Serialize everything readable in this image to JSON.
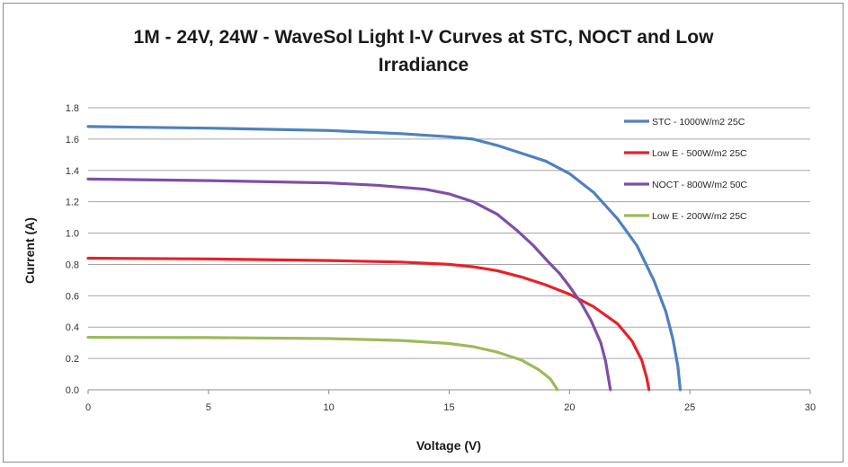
{
  "chart_data": {
    "type": "line",
    "title_lines": [
      "1M - 24V, 24W - WaveSol Light I-V Curves at STC, NOCT and Low",
      "Irradiance"
    ],
    "xlabel": "Voltage (V)",
    "ylabel": "Current (A)",
    "xlim": [
      0,
      30
    ],
    "ylim": [
      0,
      1.8
    ],
    "x_ticks": [
      0,
      5,
      10,
      15,
      20,
      25,
      30
    ],
    "y_ticks": [
      0,
      0.2,
      0.4,
      0.6,
      0.8,
      1.0,
      1.2,
      1.4,
      1.6,
      1.8
    ],
    "y_tick_labels": [
      "0.0",
      "0.2",
      "0.4",
      "0.6",
      "0.8",
      "1.0",
      "1.2",
      "1.4",
      "1.6",
      "1.8"
    ],
    "grid": "horizontal",
    "legend_position": "top-right",
    "series": [
      {
        "name": "STC - 1000W/m2  25C",
        "color": "#4f81bd",
        "points": [
          [
            0,
            1.68
          ],
          [
            5,
            1.67
          ],
          [
            10,
            1.655
          ],
          [
            13,
            1.635
          ],
          [
            15,
            1.615
          ],
          [
            16,
            1.6
          ],
          [
            17,
            1.56
          ],
          [
            18,
            1.51
          ],
          [
            19,
            1.46
          ],
          [
            20,
            1.38
          ],
          [
            21,
            1.26
          ],
          [
            22,
            1.09
          ],
          [
            22.8,
            0.92
          ],
          [
            23.5,
            0.7
          ],
          [
            24,
            0.5
          ],
          [
            24.3,
            0.32
          ],
          [
            24.5,
            0.15
          ],
          [
            24.6,
            0.0
          ]
        ]
      },
      {
        "name": "Low E - 500W/m2  25C",
        "color": "#e8202a",
        "points": [
          [
            0,
            0.84
          ],
          [
            5,
            0.835
          ],
          [
            10,
            0.825
          ],
          [
            13,
            0.815
          ],
          [
            15,
            0.8
          ],
          [
            16,
            0.785
          ],
          [
            17,
            0.76
          ],
          [
            18,
            0.72
          ],
          [
            19,
            0.67
          ],
          [
            20,
            0.61
          ],
          [
            21,
            0.53
          ],
          [
            22,
            0.42
          ],
          [
            22.6,
            0.31
          ],
          [
            23,
            0.19
          ],
          [
            23.2,
            0.08
          ],
          [
            23.3,
            0.0
          ]
        ]
      },
      {
        "name": "NOCT - 800W/m2  50C",
        "color": "#7f4fa5",
        "points": [
          [
            0,
            1.345
          ],
          [
            5,
            1.335
          ],
          [
            10,
            1.32
          ],
          [
            12,
            1.305
          ],
          [
            14,
            1.28
          ],
          [
            15,
            1.25
          ],
          [
            16,
            1.2
          ],
          [
            17,
            1.12
          ],
          [
            17.8,
            1.02
          ],
          [
            18.5,
            0.92
          ],
          [
            19.1,
            0.82
          ],
          [
            19.6,
            0.74
          ],
          [
            20,
            0.66
          ],
          [
            20.5,
            0.55
          ],
          [
            20.9,
            0.44
          ],
          [
            21.3,
            0.3
          ],
          [
            21.5,
            0.18
          ],
          [
            21.7,
            0.0
          ]
        ]
      },
      {
        "name": "Low E - 200W/m2  25C",
        "color": "#9bbb59",
        "points": [
          [
            0,
            0.335
          ],
          [
            5,
            0.333
          ],
          [
            10,
            0.327
          ],
          [
            13,
            0.315
          ],
          [
            15,
            0.295
          ],
          [
            16,
            0.275
          ],
          [
            17,
            0.24
          ],
          [
            18,
            0.19
          ],
          [
            18.7,
            0.13
          ],
          [
            19.2,
            0.07
          ],
          [
            19.5,
            0.0
          ]
        ]
      }
    ]
  }
}
